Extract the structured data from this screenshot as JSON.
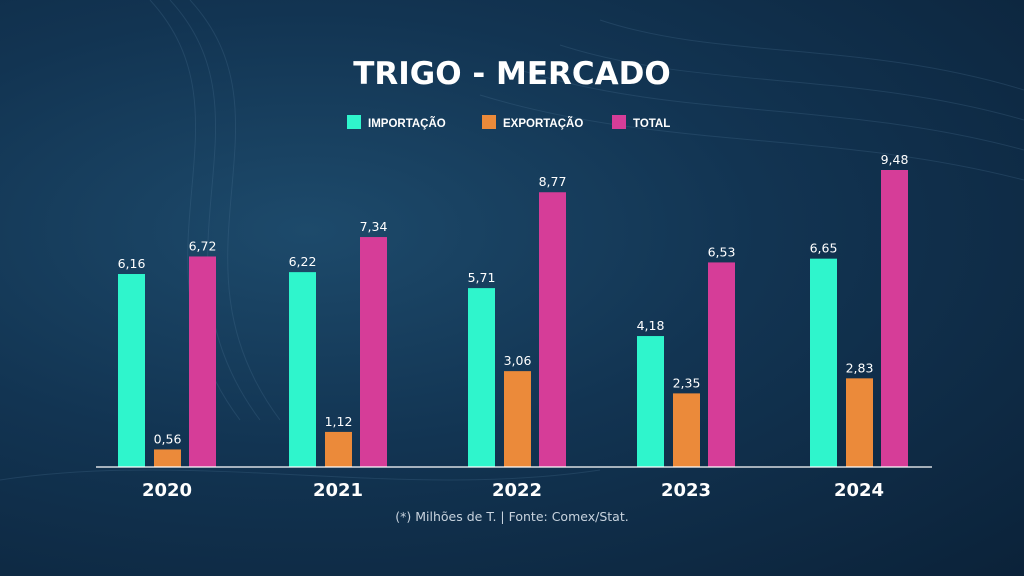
{
  "title": "TRIGO - MERCADO",
  "source": "(*) Milhões de T. | Fonte: Comex/Stat.",
  "chart_data": {
    "type": "bar",
    "title": "TRIGO - MERCADO",
    "categories": [
      "2020",
      "2021",
      "2022",
      "2023",
      "2024"
    ],
    "series": [
      {
        "name": "IMPORTAÇÃO",
        "color": "#2ff5cc",
        "values": [
          6.16,
          6.22,
          5.71,
          4.18,
          6.65
        ],
        "labels": [
          "6,16",
          "6,22",
          "5,71",
          "4,18",
          "6,65"
        ]
      },
      {
        "name": "EXPORTAÇÃO",
        "color": "#eb8a3a",
        "values": [
          0.56,
          1.12,
          3.06,
          2.35,
          2.83
        ],
        "labels": [
          "0,56",
          "1,12",
          "3,06",
          "2,35",
          "2,83"
        ]
      },
      {
        "name": "TOTAL",
        "color": "#d63d98",
        "values": [
          6.72,
          7.34,
          8.77,
          6.53,
          9.48
        ],
        "labels": [
          "6,72",
          "7,34",
          "8,77",
          "6,53",
          "9,48"
        ]
      }
    ],
    "ylim": [
      0,
      9.48
    ],
    "grid": false,
    "legend": "top-center",
    "xlabel": "",
    "ylabel": ""
  }
}
